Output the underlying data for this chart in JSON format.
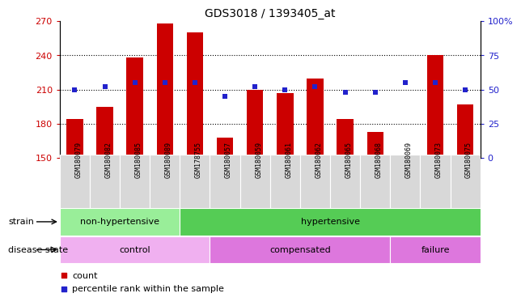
{
  "title": "GDS3018 / 1393405_at",
  "samples": [
    "GSM180079",
    "GSM180082",
    "GSM180085",
    "GSM180089",
    "GSM178755",
    "GSM180057",
    "GSM180059",
    "GSM180061",
    "GSM180062",
    "GSM180065",
    "GSM180068",
    "GSM180069",
    "GSM180073",
    "GSM180075"
  ],
  "count_values": [
    184,
    195,
    238,
    268,
    260,
    168,
    210,
    207,
    220,
    184,
    173,
    152,
    240,
    197
  ],
  "percentile_values": [
    50,
    52,
    55,
    55,
    55,
    45,
    52,
    50,
    52,
    48,
    48,
    55,
    55,
    50
  ],
  "ylim_left": [
    150,
    270
  ],
  "ylim_right": [
    0,
    100
  ],
  "yticks_left": [
    150,
    180,
    210,
    240,
    270
  ],
  "yticks_right": [
    0,
    25,
    50,
    75,
    100
  ],
  "bar_color": "#cc0000",
  "dot_color": "#2222cc",
  "strain_groups": [
    {
      "label": "non-hypertensive",
      "start": 0,
      "end": 4,
      "color": "#99ee99"
    },
    {
      "label": "hypertensive",
      "start": 4,
      "end": 14,
      "color": "#55cc55"
    }
  ],
  "disease_groups": [
    {
      "label": "control",
      "start": 0,
      "end": 5,
      "color": "#f0b0f0"
    },
    {
      "label": "compensated",
      "start": 5,
      "end": 11,
      "color": "#dd77dd"
    },
    {
      "label": "failure",
      "start": 11,
      "end": 14,
      "color": "#dd77dd"
    }
  ],
  "strain_label": "strain",
  "disease_label": "disease state",
  "legend_count": "count",
  "legend_pct": "percentile rank within the sample",
  "tick_bg_color": "#d8d8d8",
  "bar_width": 0.55
}
